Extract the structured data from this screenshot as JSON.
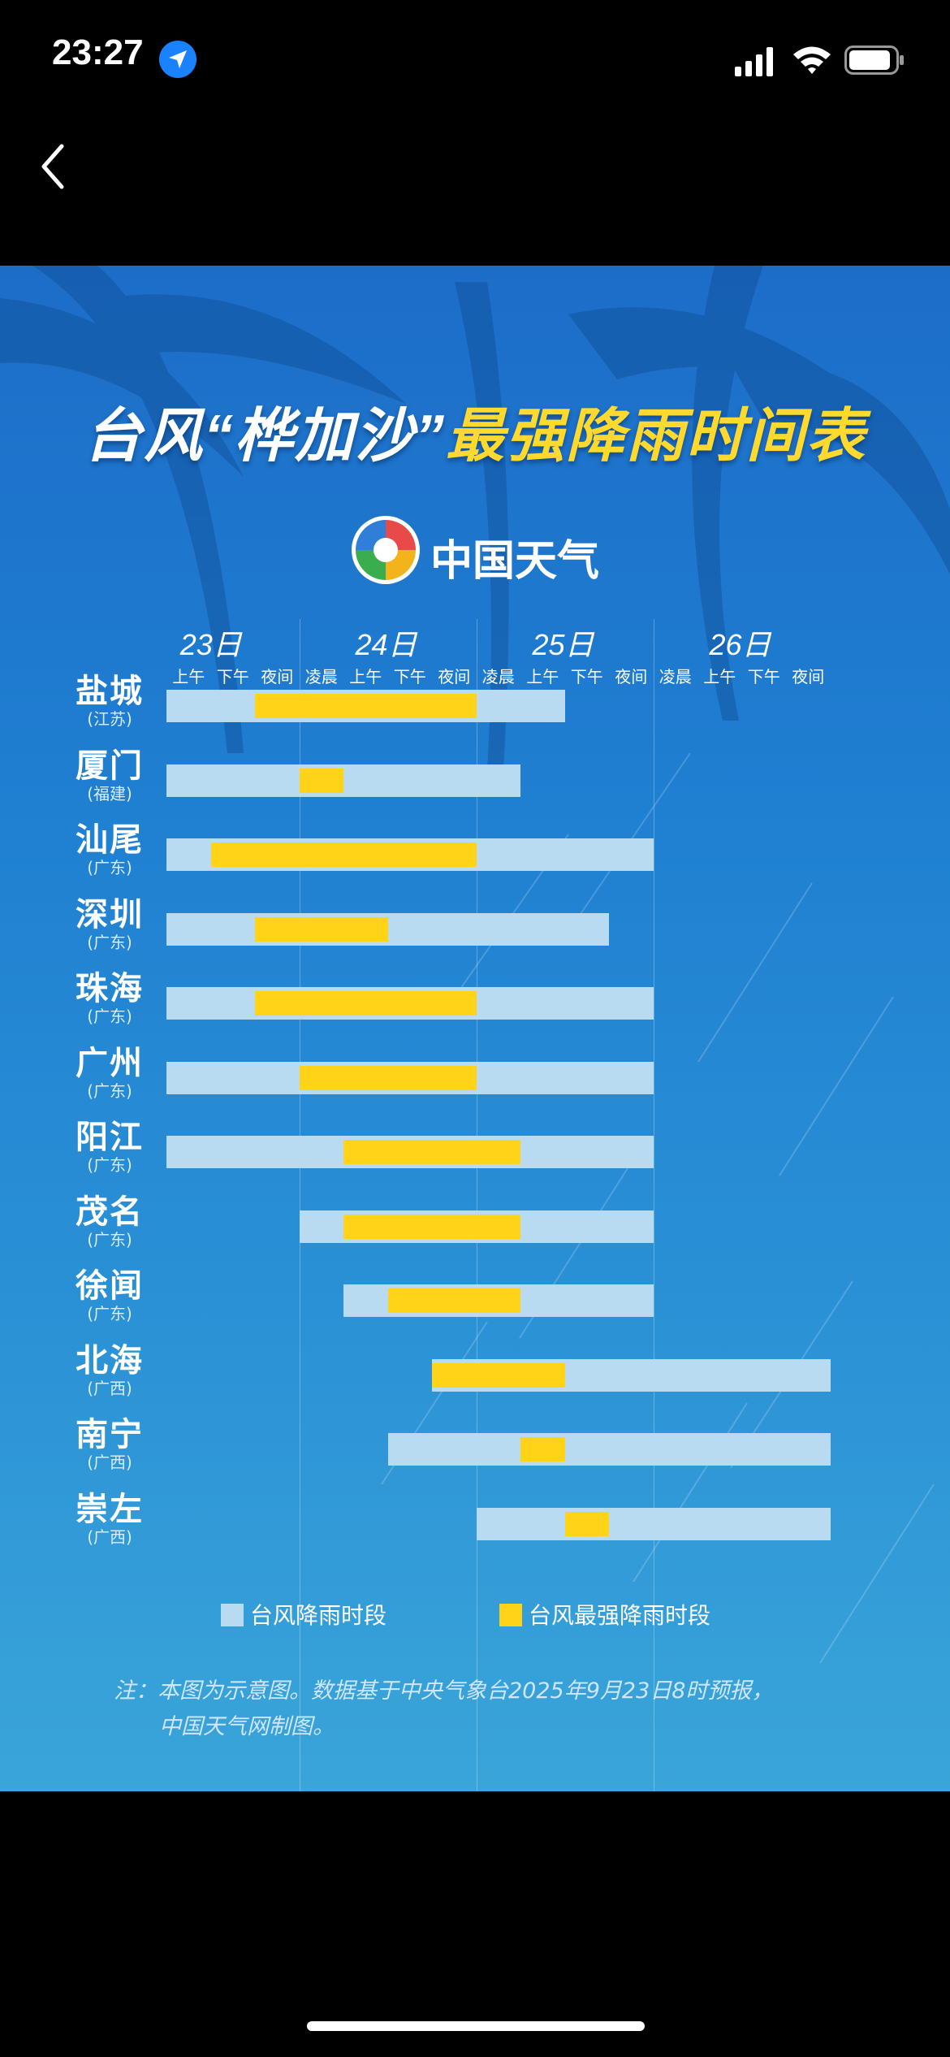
{
  "status_bar": {
    "time": "23:27"
  },
  "poster": {
    "title_part1": "台风",
    "title_part2": "“桦加沙”",
    "title_part3": "最强降雨时间表",
    "logo_text": "中国天气",
    "days": [
      "23日",
      "24日",
      "25日",
      "26日"
    ],
    "periods": [
      "上午",
      "下午",
      "夜间",
      "凌晨",
      "上午",
      "下午",
      "夜间",
      "凌晨",
      "上午",
      "下午",
      "夜间",
      "凌晨",
      "上午",
      "下午",
      "夜间"
    ],
    "legend_rain": "台风降雨时段",
    "legend_peak": "台风最强降雨时段",
    "note_line1": "注：本图为示意图。数据基于中央气象台2025年9月23日8时预报，",
    "note_line2": "中国天气网制图。",
    "colors": {
      "rain": "#b9dbf2",
      "peak": "#ffd418",
      "title_yellow": "#ffd92e"
    }
  },
  "chart_data": {
    "type": "bar",
    "title": "台风“桦加沙”最强降雨时间表",
    "x_unit": "period index (0 = 23日上午, 1 = 23日下午, 2 = 23日夜间, 3 = 24日凌晨 ... 14 = 26日夜间)",
    "categories": [
      "盐城",
      "厦门",
      "汕尾",
      "深圳",
      "珠海",
      "广州",
      "阳江",
      "茂名",
      "徐闻",
      "北海",
      "南宁",
      "崇左"
    ],
    "provinces": [
      "江苏",
      "福建",
      "广东",
      "广东",
      "广东",
      "广东",
      "广东",
      "广东",
      "广东",
      "广西",
      "广西",
      "广西"
    ],
    "series": [
      {
        "name": "台风降雨时段",
        "ranges": [
          [
            0,
            9
          ],
          [
            0,
            8
          ],
          [
            0,
            11
          ],
          [
            0,
            10
          ],
          [
            0,
            11
          ],
          [
            0,
            11
          ],
          [
            0,
            11
          ],
          [
            3,
            11
          ],
          [
            4,
            11
          ],
          [
            6,
            15
          ],
          [
            5,
            15
          ],
          [
            7,
            15
          ]
        ]
      },
      {
        "name": "台风最强降雨时段",
        "ranges": [
          [
            2,
            7
          ],
          [
            3,
            4
          ],
          [
            1,
            7
          ],
          [
            2,
            5
          ],
          [
            2,
            7
          ],
          [
            3,
            7
          ],
          [
            4,
            8
          ],
          [
            4,
            8
          ],
          [
            5,
            8
          ],
          [
            6,
            9
          ],
          [
            8,
            9
          ],
          [
            9,
            10
          ]
        ]
      }
    ]
  }
}
